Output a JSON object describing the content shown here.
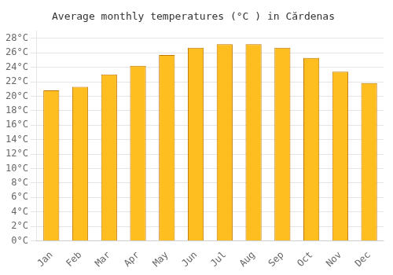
{
  "chart_data": {
    "type": "bar",
    "title": "Average monthly temperatures (°C ) in Cărdenas",
    "categories": [
      "Jan",
      "Feb",
      "Mar",
      "Apr",
      "May",
      "Jun",
      "Jul",
      "Aug",
      "Sep",
      "Oct",
      "Nov",
      "Dec"
    ],
    "values": [
      20.8,
      21.3,
      23.0,
      24.2,
      25.7,
      26.7,
      27.2,
      27.2,
      26.7,
      25.3,
      23.4,
      21.8
    ],
    "color": "#FFBE20",
    "ylim": [
      0,
      29
    ],
    "yticks": [
      {
        "value": 0,
        "label": "0°C"
      },
      {
        "value": 2,
        "label": "2°C"
      },
      {
        "value": 4,
        "label": "4°C"
      },
      {
        "value": 6,
        "label": "6°C"
      },
      {
        "value": 8,
        "label": "8°C"
      },
      {
        "value": 10,
        "label": "10°C"
      },
      {
        "value": 12,
        "label": "12°C"
      },
      {
        "value": 14,
        "label": "14°C"
      },
      {
        "value": 16,
        "label": "16°C"
      },
      {
        "value": 18,
        "label": "18°C"
      },
      {
        "value": 20,
        "label": "20°C"
      },
      {
        "value": 22,
        "label": "22°C"
      },
      {
        "value": 24,
        "label": "24°C"
      },
      {
        "value": 26,
        "label": "26°C"
      },
      {
        "value": 28,
        "label": "28°C"
      }
    ],
    "grid": true
  }
}
